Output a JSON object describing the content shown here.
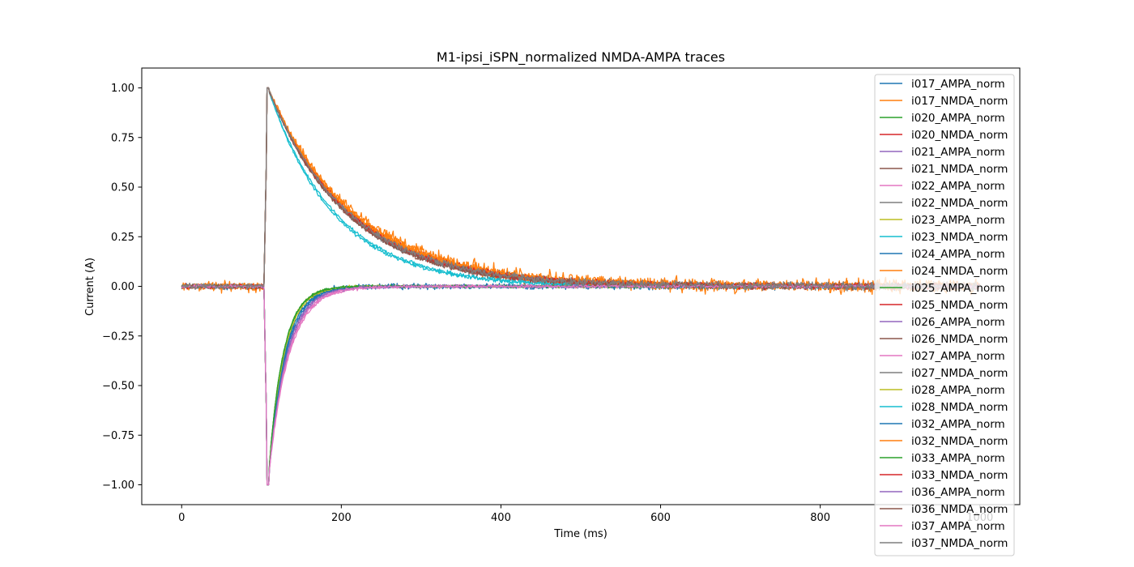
{
  "chart_data": {
    "type": "line",
    "title": "M1-ipsi_iSPN_normalized NMDA-AMPA traces",
    "xlabel": "Time (ms)",
    "ylabel": "Current (A)",
    "xlim": [
      -50,
      1050
    ],
    "ylim": [
      -1.1,
      1.1
    ],
    "xticks": [
      0,
      200,
      400,
      600,
      800,
      1000
    ],
    "xtick_labels": [
      "0",
      "200",
      "400",
      "600",
      "800",
      "1000"
    ],
    "yticks": [
      -1.0,
      -0.75,
      -0.5,
      -0.25,
      0.0,
      0.25,
      0.5,
      0.75,
      1.0
    ],
    "ytick_labels": [
      "−1.00",
      "−0.75",
      "−0.50",
      "−0.25",
      "0.00",
      "0.25",
      "0.50",
      "0.75",
      "1.00"
    ],
    "grid": false,
    "legend_position": "top-right",
    "stimulus_onset_ms": 103,
    "peak_time_ms": 108,
    "series": [
      {
        "name": "i017_AMPA_norm",
        "kind": "AMPA",
        "color": "#1f77b4",
        "decay_ms": 20,
        "noise": 0.012
      },
      {
        "name": "i017_NMDA_norm",
        "kind": "NMDA",
        "color": "#ff7f0e",
        "decay_ms": 110,
        "noise": 0.02
      },
      {
        "name": "i020_AMPA_norm",
        "kind": "AMPA",
        "color": "#2ca02c",
        "decay_ms": 18,
        "noise": 0.005
      },
      {
        "name": "i020_NMDA_norm",
        "kind": "NMDA",
        "color": "#d62728",
        "decay_ms": 105,
        "noise": 0.008
      },
      {
        "name": "i021_AMPA_norm",
        "kind": "AMPA",
        "color": "#9467bd",
        "decay_ms": 22,
        "noise": 0.005
      },
      {
        "name": "i021_NMDA_norm",
        "kind": "NMDA",
        "color": "#8c564b",
        "decay_ms": 100,
        "noise": 0.008
      },
      {
        "name": "i022_AMPA_norm",
        "kind": "AMPA",
        "color": "#e377c2",
        "decay_ms": 24,
        "noise": 0.006
      },
      {
        "name": "i022_NMDA_norm",
        "kind": "NMDA",
        "color": "#7f7f7f",
        "decay_ms": 102,
        "noise": 0.01
      },
      {
        "name": "i023_AMPA_norm",
        "kind": "AMPA",
        "color": "#bcbd22",
        "decay_ms": 18,
        "noise": 0.005
      },
      {
        "name": "i023_NMDA_norm",
        "kind": "NMDA",
        "color": "#17becf",
        "decay_ms": 85,
        "noise": 0.006
      },
      {
        "name": "i024_AMPA_norm",
        "kind": "AMPA",
        "color": "#1f77b4",
        "decay_ms": 20,
        "noise": 0.006
      },
      {
        "name": "i024_NMDA_norm",
        "kind": "NMDA",
        "color": "#ff7f0e",
        "decay_ms": 108,
        "noise": 0.012
      },
      {
        "name": "i025_AMPA_norm",
        "kind": "AMPA",
        "color": "#2ca02c",
        "decay_ms": 18,
        "noise": 0.005
      },
      {
        "name": "i025_NMDA_norm",
        "kind": "NMDA",
        "color": "#d62728",
        "decay_ms": 103,
        "noise": 0.008
      },
      {
        "name": "i026_AMPA_norm",
        "kind": "AMPA",
        "color": "#9467bd",
        "decay_ms": 22,
        "noise": 0.005
      },
      {
        "name": "i026_NMDA_norm",
        "kind": "NMDA",
        "color": "#8c564b",
        "decay_ms": 98,
        "noise": 0.008
      },
      {
        "name": "i027_AMPA_norm",
        "kind": "AMPA",
        "color": "#e377c2",
        "decay_ms": 25,
        "noise": 0.006
      },
      {
        "name": "i027_NMDA_norm",
        "kind": "NMDA",
        "color": "#7f7f7f",
        "decay_ms": 100,
        "noise": 0.01
      },
      {
        "name": "i028_AMPA_norm",
        "kind": "AMPA",
        "color": "#bcbd22",
        "decay_ms": 19,
        "noise": 0.005
      },
      {
        "name": "i028_NMDA_norm",
        "kind": "NMDA",
        "color": "#17becf",
        "decay_ms": 82,
        "noise": 0.006
      },
      {
        "name": "i032_AMPA_norm",
        "kind": "AMPA",
        "color": "#1f77b4",
        "decay_ms": 21,
        "noise": 0.005
      },
      {
        "name": "i032_NMDA_norm",
        "kind": "NMDA",
        "color": "#ff7f0e",
        "decay_ms": 106,
        "noise": 0.01
      },
      {
        "name": "i033_AMPA_norm",
        "kind": "AMPA",
        "color": "#2ca02c",
        "decay_ms": 18,
        "noise": 0.005
      },
      {
        "name": "i033_NMDA_norm",
        "kind": "NMDA",
        "color": "#d62728",
        "decay_ms": 101,
        "noise": 0.008
      },
      {
        "name": "i036_AMPA_norm",
        "kind": "AMPA",
        "color": "#9467bd",
        "decay_ms": 23,
        "noise": 0.005
      },
      {
        "name": "i036_NMDA_norm",
        "kind": "NMDA",
        "color": "#8c564b",
        "decay_ms": 99,
        "noise": 0.008
      },
      {
        "name": "i037_AMPA_norm",
        "kind": "AMPA",
        "color": "#e377c2",
        "decay_ms": 24,
        "noise": 0.006
      },
      {
        "name": "i037_NMDA_norm",
        "kind": "NMDA",
        "color": "#7f7f7f",
        "decay_ms": 102,
        "noise": 0.01
      }
    ]
  }
}
